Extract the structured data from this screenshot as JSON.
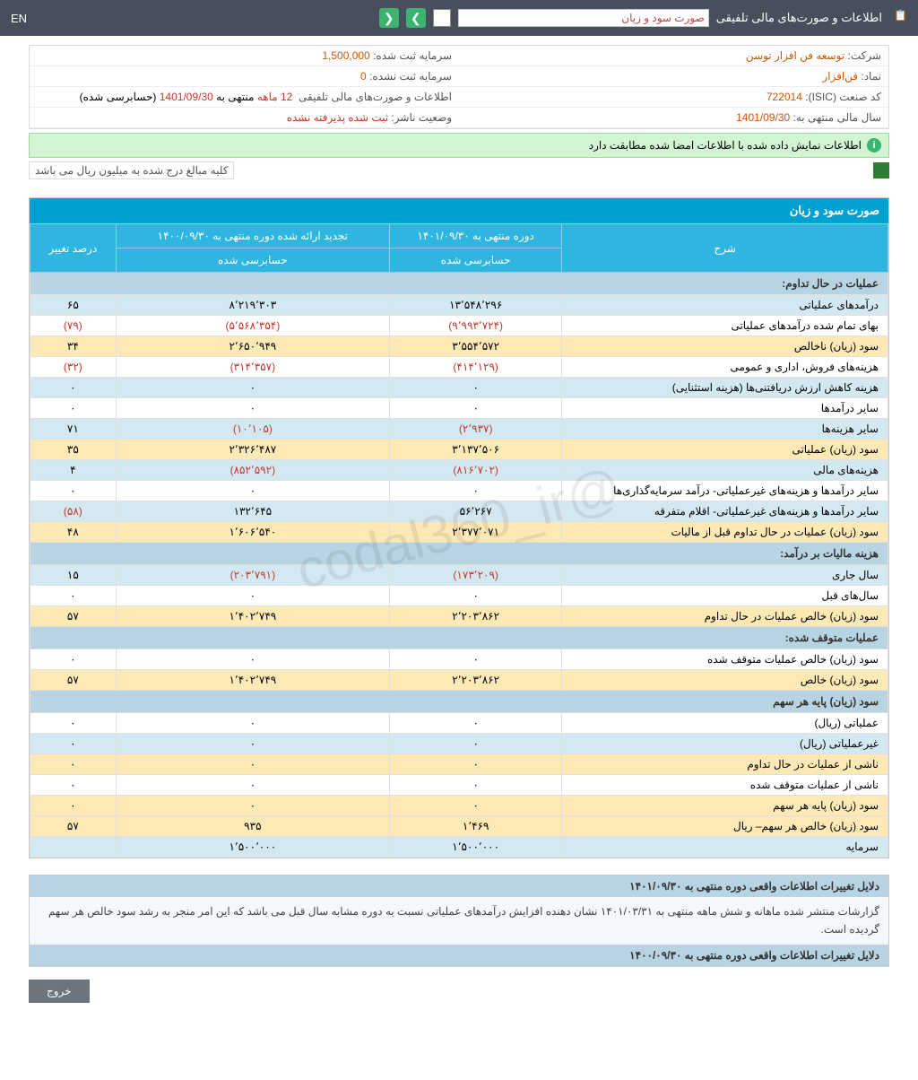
{
  "topbar": {
    "title": "اطلاعات و صورت‌های مالی تلفیقی",
    "dropdown": "صورت سود و زیان",
    "lang": "EN"
  },
  "info": {
    "company_label": "شرکت:",
    "company": "توسعه فن افزار توسن",
    "capital_reg_label": "سرمایه ثبت شده:",
    "capital_reg": "1,500,000",
    "symbol_label": "نماد:",
    "symbol": "فن‌افزار",
    "capital_unreg_label": "سرمایه ثبت نشده:",
    "capital_unreg": "0",
    "isic_label": "کد صنعت (ISIC):",
    "isic": "722014",
    "report_label": "اطلاعات و صورت‌های مالی تلفیقی",
    "period": "12 ماهه",
    "period_prefix": "منتهی به",
    "period_date": "1401/09/30",
    "period_suffix": "(حسابرسی شده)",
    "fiscal_label": "سال مالی منتهی به:",
    "fiscal": "1401/09/30",
    "status_label": "وضعیت ناشر:",
    "status": "ثبت شده پذیرفته نشده",
    "verified": "اطلاعات نمایش داده شده با اطلاعات امضا شده مطابقت دارد",
    "note": "کلیه مبالغ درج شده به میلیون ریال می باشد"
  },
  "table": {
    "title": "صورت سود و زیان",
    "headers": {
      "desc": "شرح",
      "col1_top": "دوره منتهی به ۱۴۰۱/۰۹/۳۰",
      "col1_sub": "حسابرسی شده",
      "col2_top": "تجدید ارائه شده دوره منتهی به ۱۴۰۰/۰۹/۳۰",
      "col2_sub": "حسابرسی شده",
      "pct": "درصد تغيير"
    },
    "sections": [
      {
        "type": "header",
        "label": "عملیات در حال تداوم:"
      },
      {
        "type": "row",
        "cls": "row-blue",
        "desc": "درآمدهای عملیاتی",
        "c1": "۱۳٬۵۴۸٬۲۹۶",
        "c2": "۸٬۲۱۹٬۳۰۳",
        "pct": "۶۵"
      },
      {
        "type": "row",
        "cls": "row-white",
        "desc": "بهای تمام شده درآمدهای عملیاتی",
        "c1": "(۹٬۹۹۳٬۷۲۴)",
        "c1neg": true,
        "c2": "(۵٬۵۶۸٬۳۵۴)",
        "c2neg": true,
        "pct": "(۷۹)",
        "pctneg": true
      },
      {
        "type": "row",
        "cls": "row-yellow",
        "desc": "سود (زيان) ناخالص",
        "c1": "۳٬۵۵۴٬۵۷۲",
        "c2": "۲٬۶۵۰٬۹۴۹",
        "pct": "۳۴"
      },
      {
        "type": "row",
        "cls": "row-white",
        "desc": "هزينه‌های فروش، اداری و عمومی",
        "c1": "(۴۱۴٬۱۲۹)",
        "c1neg": true,
        "c2": "(۳۱۴٬۳۵۷)",
        "c2neg": true,
        "pct": "(۳۲)",
        "pctneg": true
      },
      {
        "type": "row",
        "cls": "row-blue",
        "desc": "هزينه کاهش ارزش دريافتنی‌ها (هزينه استثنايی)",
        "c1": "۰",
        "c2": "۰",
        "pct": "۰"
      },
      {
        "type": "row",
        "cls": "row-white",
        "desc": "ساير درآمدها",
        "c1": "۰",
        "c2": "۰",
        "pct": "۰"
      },
      {
        "type": "row",
        "cls": "row-blue",
        "desc": "ساير هزينه‌ها",
        "c1": "(۲٬۹۳۷)",
        "c1neg": true,
        "c2": "(۱۰٬۱۰۵)",
        "c2neg": true,
        "pct": "۷۱"
      },
      {
        "type": "row",
        "cls": "row-yellow",
        "desc": "سود (زيان) عملياتی",
        "c1": "۳٬۱۳۷٬۵۰۶",
        "c2": "۲٬۳۲۶٬۴۸۷",
        "pct": "۳۵"
      },
      {
        "type": "row",
        "cls": "row-blue",
        "desc": "هزينه‌های مالی",
        "c1": "(۸۱۶٬۷۰۲)",
        "c1neg": true,
        "c2": "(۸۵۲٬۵۹۲)",
        "c2neg": true,
        "pct": "۴"
      },
      {
        "type": "row",
        "cls": "row-white",
        "desc": "ساير درآمدها و هزينه‌های غيرعملياتی- درآمد سرمايه‌گذاری‌ها",
        "c1": "۰",
        "c2": "۰",
        "pct": "۰"
      },
      {
        "type": "row",
        "cls": "row-blue",
        "desc": "ساير درآمدها و هزينه‌های غيرعملياتی- اقلام متفرقه",
        "c1": "۵۶٬۲۶۷",
        "c2": "۱۳۲٬۶۴۵",
        "pct": "(۵۸)",
        "pctneg": true
      },
      {
        "type": "row",
        "cls": "row-yellow",
        "desc": "سود (زيان) عمليات در حال تداوم قبل از ماليات",
        "c1": "۲٬۳۷۷٬۰۷۱",
        "c2": "۱٬۶۰۶٬۵۴۰",
        "pct": "۴۸"
      },
      {
        "type": "header",
        "label": "هزینه مالیات بر درآمد:"
      },
      {
        "type": "row",
        "cls": "row-blue",
        "desc": "سال جاری",
        "c1": "(۱۷۳٬۲۰۹)",
        "c1neg": true,
        "c2": "(۲۰۳٬۷۹۱)",
        "c2neg": true,
        "pct": "۱۵"
      },
      {
        "type": "row",
        "cls": "row-white",
        "desc": "سال‌های قبل",
        "c1": "۰",
        "c2": "۰",
        "pct": "۰"
      },
      {
        "type": "row",
        "cls": "row-yellow",
        "desc": "سود (زيان) خالص عمليات در حال تداوم",
        "c1": "۲٬۲۰۳٬۸۶۲",
        "c2": "۱٬۴۰۲٬۷۴۹",
        "pct": "۵۷"
      },
      {
        "type": "header",
        "label": "عملیات متوقف شده:"
      },
      {
        "type": "row",
        "cls": "row-white",
        "desc": "سود (زيان) خالص عمليات متوقف شده",
        "c1": "۰",
        "c2": "۰",
        "pct": "۰"
      },
      {
        "type": "row",
        "cls": "row-yellow",
        "desc": "سود (زيان) خالص",
        "c1": "۲٬۲۰۳٬۸۶۲",
        "c2": "۱٬۴۰۲٬۷۴۹",
        "pct": "۵۷"
      },
      {
        "type": "header",
        "label": "سود (زيان) پايه هر سهم"
      },
      {
        "type": "row",
        "cls": "row-white",
        "desc": "عملياتی (ريال)",
        "c1": "۰",
        "c2": "۰",
        "pct": "۰"
      },
      {
        "type": "row",
        "cls": "row-blue",
        "desc": "غيرعملياتی (ريال)",
        "c1": "۰",
        "c2": "۰",
        "pct": "۰"
      },
      {
        "type": "row",
        "cls": "row-yellow",
        "desc": "ناشی از عمليات در حال تداوم",
        "c1": "۰",
        "c2": "۰",
        "pct": "۰"
      },
      {
        "type": "row",
        "cls": "row-white",
        "desc": "ناشی از عمليات متوقف شده",
        "c1": "۰",
        "c2": "۰",
        "pct": "۰"
      },
      {
        "type": "row",
        "cls": "row-yellow",
        "desc": "سود (زيان) پايه هر سهم",
        "c1": "۰",
        "c2": "۰",
        "pct": "۰"
      },
      {
        "type": "row",
        "cls": "row-yellow",
        "desc": "سود (زيان) خالص هر سهم– ريال",
        "c1": "۱٬۴۶۹",
        "c2": "۹۳۵",
        "pct": "۵۷"
      },
      {
        "type": "row",
        "cls": "row-blue",
        "desc": "سرمايه",
        "c1": "۱٬۵۰۰٬۰۰۰",
        "c2": "۱٬۵۰۰٬۰۰۰",
        "pct": ""
      }
    ]
  },
  "footer": {
    "head1": "دلایل تغییرات اطلاعات واقعی دوره منتهی به ۱۴۰۱/۰۹/۳۰",
    "body1": "گزارشات منتشر شده ماهانه و شش ماهه منتهی به ۱۴۰۱/۰۳/۳۱ نشان دهنده افزایش درآمدهای عملیاتی نسبت به دوره مشابه سال قبل می باشد که این امر منجر به رشد سود خالص هر سهم گردیده است.",
    "head2": "دلایل تغییرات اطلاعات واقعی دوره منتهی به ۱۴۰۰/۰۹/۳۰",
    "exit": "خروج"
  },
  "watermark": "@codal360_ir"
}
